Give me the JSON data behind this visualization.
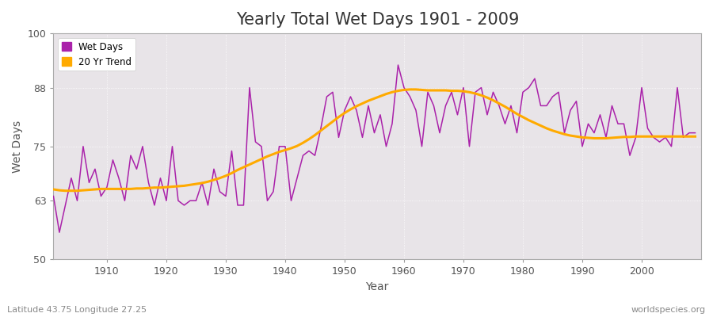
{
  "title": "Yearly Total Wet Days 1901 - 2009",
  "xlabel": "Year",
  "ylabel": "Wet Days",
  "subtitle": "Latitude 43.75 Longitude 27.25",
  "watermark": "worldspecies.org",
  "ylim": [
    50,
    100
  ],
  "yticks": [
    50,
    63,
    75,
    88,
    100
  ],
  "xticks": [
    1910,
    1920,
    1930,
    1940,
    1950,
    1960,
    1970,
    1980,
    1990,
    2000
  ],
  "xlim": [
    1901,
    2010
  ],
  "line_color": "#aa22aa",
  "trend_color": "#ffaa00",
  "bg_color": "#e8e4e8",
  "fig_color": "#ffffff",
  "legend_wet": "Wet Days",
  "legend_trend": "20 Yr Trend",
  "years": [
    1901,
    1902,
    1903,
    1904,
    1905,
    1906,
    1907,
    1908,
    1909,
    1910,
    1911,
    1912,
    1913,
    1914,
    1915,
    1916,
    1917,
    1918,
    1919,
    1920,
    1921,
    1922,
    1923,
    1924,
    1925,
    1926,
    1927,
    1928,
    1929,
    1930,
    1931,
    1932,
    1933,
    1934,
    1935,
    1936,
    1937,
    1938,
    1939,
    1940,
    1941,
    1942,
    1943,
    1944,
    1945,
    1946,
    1947,
    1948,
    1949,
    1950,
    1951,
    1952,
    1953,
    1954,
    1955,
    1956,
    1957,
    1958,
    1959,
    1960,
    1961,
    1962,
    1963,
    1964,
    1965,
    1966,
    1967,
    1968,
    1969,
    1970,
    1971,
    1972,
    1973,
    1974,
    1975,
    1976,
    1977,
    1978,
    1979,
    1980,
    1981,
    1982,
    1983,
    1984,
    1985,
    1986,
    1987,
    1988,
    1989,
    1990,
    1991,
    1992,
    1993,
    1994,
    1995,
    1996,
    1997,
    1998,
    1999,
    2000,
    2001,
    2002,
    2003,
    2004,
    2005,
    2006,
    2007,
    2008,
    2009
  ],
  "wet_days": [
    64,
    56,
    62,
    68,
    63,
    75,
    67,
    70,
    64,
    66,
    72,
    68,
    63,
    73,
    70,
    75,
    67,
    62,
    68,
    63,
    75,
    63,
    62,
    63,
    63,
    67,
    62,
    70,
    65,
    64,
    74,
    62,
    62,
    88,
    76,
    75,
    63,
    65,
    75,
    75,
    63,
    68,
    73,
    74,
    73,
    79,
    86,
    87,
    77,
    83,
    86,
    83,
    77,
    84,
    78,
    82,
    75,
    80,
    93,
    88,
    86,
    83,
    75,
    87,
    84,
    78,
    84,
    87,
    82,
    88,
    75,
    87,
    88,
    82,
    87,
    84,
    80,
    84,
    78,
    87,
    88,
    90,
    84,
    84,
    86,
    87,
    78,
    83,
    85,
    75,
    80,
    78,
    82,
    77,
    84,
    80,
    80,
    73,
    77,
    88,
    79,
    77,
    76,
    77,
    75,
    88,
    77,
    78,
    78
  ],
  "trend": [
    65.5,
    65.3,
    65.2,
    65.2,
    65.2,
    65.3,
    65.4,
    65.5,
    65.6,
    65.6,
    65.6,
    65.6,
    65.6,
    65.6,
    65.7,
    65.7,
    65.8,
    65.9,
    65.9,
    66.0,
    66.1,
    66.2,
    66.3,
    66.5,
    66.7,
    66.9,
    67.2,
    67.6,
    68.0,
    68.5,
    69.1,
    69.8,
    70.4,
    71.0,
    71.6,
    72.2,
    72.8,
    73.3,
    73.8,
    74.2,
    74.6,
    75.1,
    75.8,
    76.6,
    77.5,
    78.5,
    79.5,
    80.5,
    81.5,
    82.4,
    83.2,
    83.9,
    84.5,
    85.1,
    85.6,
    86.1,
    86.6,
    87.0,
    87.3,
    87.5,
    87.6,
    87.6,
    87.5,
    87.4,
    87.4,
    87.4,
    87.4,
    87.3,
    87.3,
    87.2,
    87.0,
    86.7,
    86.3,
    85.8,
    85.2,
    84.5,
    83.8,
    83.0,
    82.2,
    81.5,
    80.8,
    80.2,
    79.6,
    79.0,
    78.5,
    78.1,
    77.7,
    77.4,
    77.2,
    77.0,
    76.9,
    76.8,
    76.8,
    76.8,
    76.9,
    77.0,
    77.1,
    77.1,
    77.2,
    77.2,
    77.2,
    77.2,
    77.2,
    77.2,
    77.2,
    77.2,
    77.2,
    77.2,
    77.2
  ]
}
